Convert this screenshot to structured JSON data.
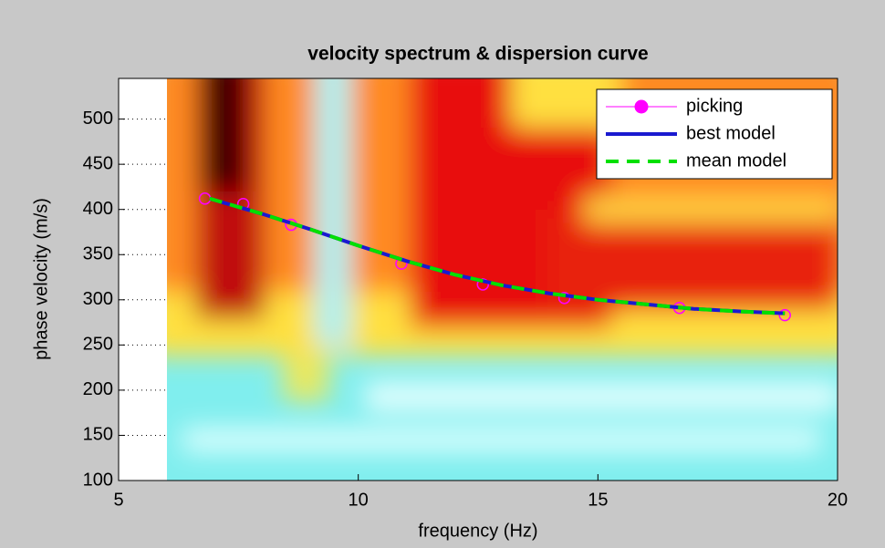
{
  "chart_data": {
    "type": "line",
    "title": "velocity spectrum & dispersion curve",
    "xlabel": "frequency (Hz)",
    "ylabel": "phase velocity (m/s)",
    "xlim": [
      5,
      20
    ],
    "xticks": [
      5,
      10,
      15,
      20
    ],
    "ylim": [
      100,
      545
    ],
    "yticks": [
      100,
      150,
      200,
      250,
      300,
      350,
      400,
      450,
      500
    ],
    "grid": true,
    "legend": "upper right",
    "series": [
      {
        "name": "picking",
        "color": "#ff00ff",
        "marker": "o",
        "linestyle": "none",
        "x": [
          6.8,
          7.6,
          8.6,
          10.9,
          12.6,
          14.3,
          16.7,
          18.9
        ],
        "values": [
          412,
          406,
          383,
          340,
          317,
          302,
          291,
          283
        ]
      },
      {
        "name": "best model",
        "color": "#1a1ad0",
        "linestyle": "solid",
        "x": [
          6.9,
          8,
          9,
          10,
          11,
          12,
          13,
          14,
          15,
          16,
          17,
          18,
          18.9
        ],
        "values": [
          412,
          395,
          378,
          360,
          343,
          328,
          316,
          307,
          300,
          295,
          290,
          287,
          285
        ]
      },
      {
        "name": "mean model",
        "color": "#00e000",
        "linestyle": "dashed",
        "x": [
          6.9,
          8,
          9,
          10,
          11,
          12,
          13,
          14,
          15,
          16,
          17,
          18,
          18.9
        ],
        "values": [
          412,
          395,
          378,
          360,
          343,
          328,
          316,
          307,
          300,
          295,
          290,
          287,
          285
        ]
      }
    ]
  }
}
